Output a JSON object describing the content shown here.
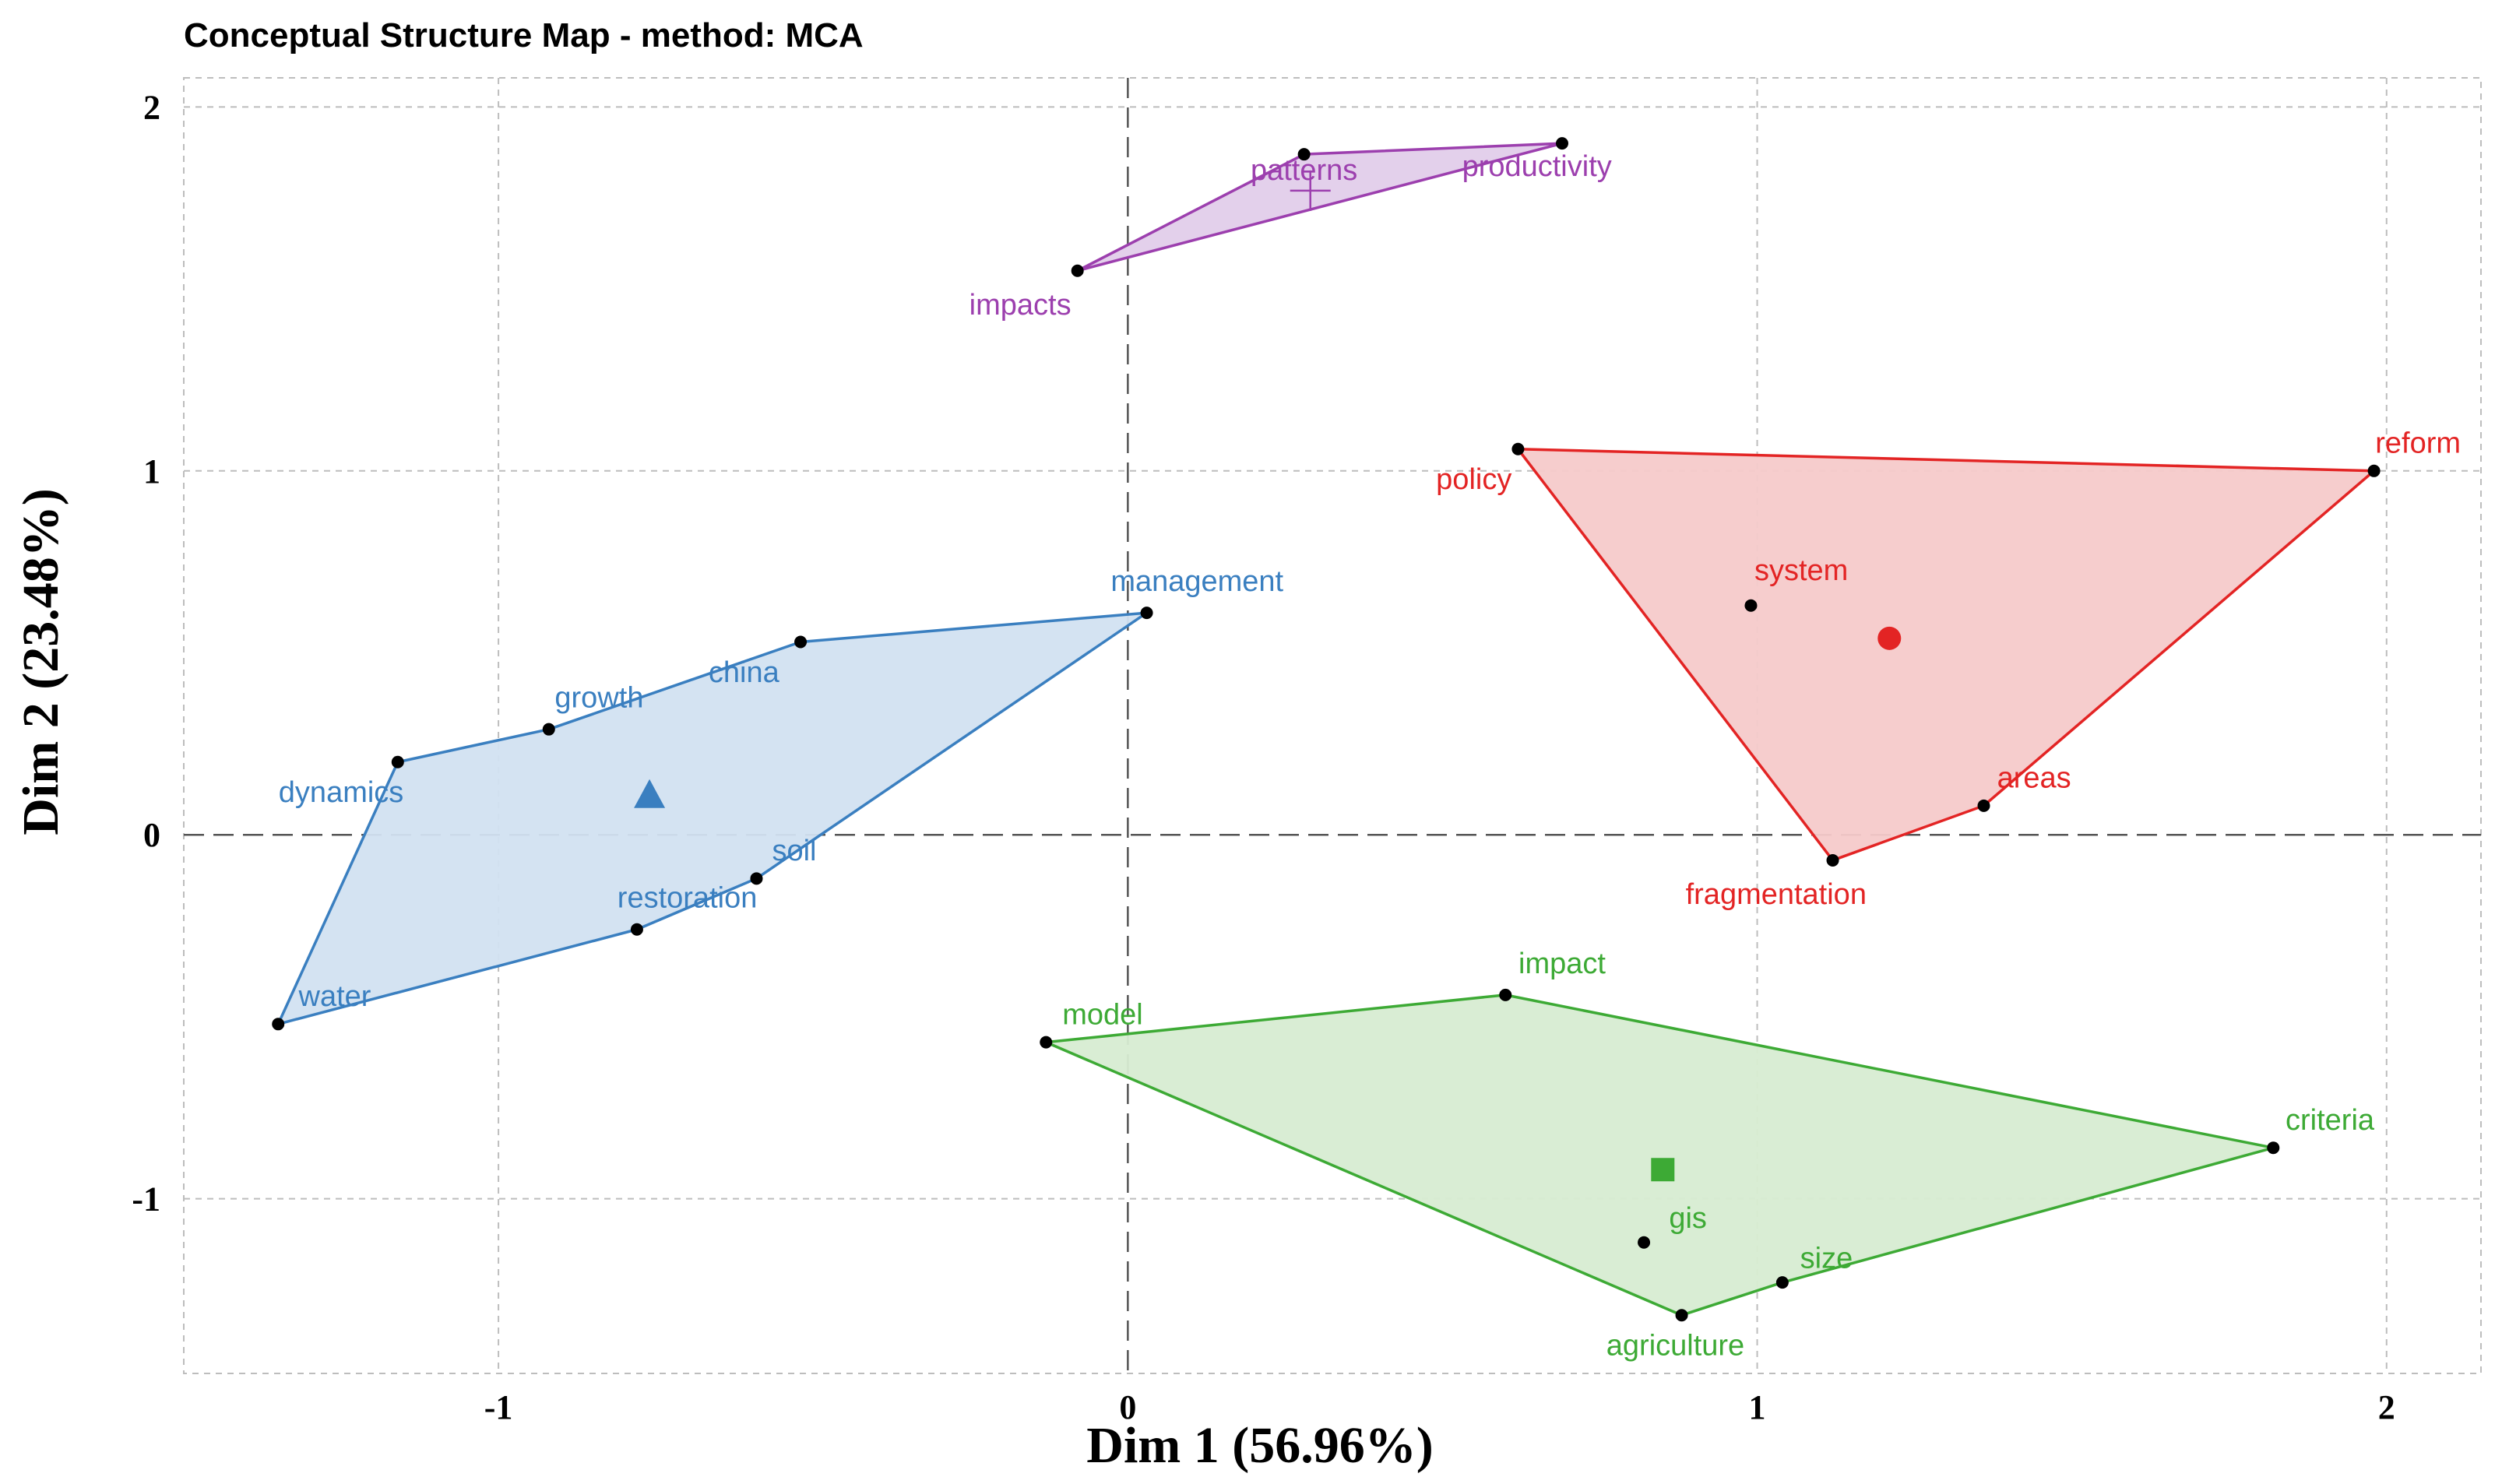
{
  "chart_data": {
    "type": "scatter",
    "title": "Conceptual Structure Map - method: MCA",
    "xlabel": "Dim 1 (56.96%)",
    "ylabel": "Dim 2 (23.48%)",
    "xlim": [
      -1.5,
      2.15
    ],
    "ylim": [
      -1.48,
      2.08
    ],
    "xticks": [
      -1,
      0,
      1,
      2
    ],
    "yticks": [
      -1,
      0,
      1,
      2
    ],
    "grid": true,
    "clusters": [
      {
        "name": "cluster-purple",
        "color": "#9c3fae",
        "fill": "#e2cdea",
        "centroid": {
          "x": 0.29,
          "y": 1.77,
          "marker": "plus"
        },
        "points": [
          {
            "label": "patterns",
            "x": 0.28,
            "y": 1.87,
            "anchor": "middle",
            "dx": 0,
            "dy": -0.07
          },
          {
            "label": "productivity",
            "x": 0.69,
            "y": 1.9,
            "anchor": "middle",
            "dx": -0.04,
            "dy": -0.09
          },
          {
            "label": "impacts",
            "x": -0.08,
            "y": 1.55,
            "anchor": "end",
            "dx": -0.01,
            "dy": -0.12
          }
        ],
        "hull": [
          "impacts",
          "patterns",
          "productivity"
        ]
      },
      {
        "name": "cluster-red",
        "color": "#e32424",
        "fill": "#f6caca",
        "centroid": {
          "x": 1.21,
          "y": 0.54,
          "marker": "circle"
        },
        "points": [
          {
            "label": "policy",
            "x": 0.62,
            "y": 1.06,
            "anchor": "end",
            "dx": -0.01,
            "dy": -0.11
          },
          {
            "label": "reform",
            "x": 1.98,
            "y": 1.0,
            "anchor": "middle",
            "dx": 0.07,
            "dy": 0.05
          },
          {
            "label": "system",
            "x": 0.99,
            "y": 0.63,
            "anchor": "middle",
            "dx": 0.08,
            "dy": 0.07
          },
          {
            "label": "areas",
            "x": 1.36,
            "y": 0.08,
            "anchor": "middle",
            "dx": 0.08,
            "dy": 0.05
          },
          {
            "label": "fragmentation",
            "x": 1.12,
            "y": -0.07,
            "anchor": "middle",
            "dx": -0.09,
            "dy": -0.12
          }
        ],
        "hull": [
          "policy",
          "reform",
          "areas",
          "fragmentation"
        ]
      },
      {
        "name": "cluster-blue",
        "color": "#3a7fc0",
        "fill": "#d2e2f1",
        "centroid": {
          "x": -0.76,
          "y": 0.11,
          "marker": "triangle"
        },
        "points": [
          {
            "label": "management",
            "x": 0.03,
            "y": 0.61,
            "anchor": "middle",
            "dx": 0.08,
            "dy": 0.06
          },
          {
            "label": "china",
            "x": -0.52,
            "y": 0.53,
            "anchor": "middle",
            "dx": -0.09,
            "dy": -0.11
          },
          {
            "label": "growth",
            "x": -0.92,
            "y": 0.29,
            "anchor": "middle",
            "dx": 0.08,
            "dy": 0.06
          },
          {
            "label": "dynamics",
            "x": -1.16,
            "y": 0.2,
            "anchor": "middle",
            "dx": -0.09,
            "dy": -0.11
          },
          {
            "label": "soil",
            "x": -0.59,
            "y": -0.12,
            "anchor": "middle",
            "dx": 0.06,
            "dy": 0.05
          },
          {
            "label": "restoration",
            "x": -0.78,
            "y": -0.26,
            "anchor": "middle",
            "dx": 0.08,
            "dy": 0.06
          },
          {
            "label": "water",
            "x": -1.35,
            "y": -0.52,
            "anchor": "middle",
            "dx": 0.09,
            "dy": 0.05
          }
        ],
        "hull": [
          "water",
          "dynamics",
          "growth",
          "china",
          "management",
          "soil",
          "restoration"
        ]
      },
      {
        "name": "cluster-green",
        "color": "#3daa35",
        "fill": "#d7ecd2",
        "centroid": {
          "x": 0.85,
          "y": -0.92,
          "marker": "square"
        },
        "points": [
          {
            "label": "impact",
            "x": 0.6,
            "y": -0.44,
            "anchor": "middle",
            "dx": 0.09,
            "dy": 0.06
          },
          {
            "label": "model",
            "x": -0.13,
            "y": -0.57,
            "anchor": "middle",
            "dx": 0.09,
            "dy": 0.05
          },
          {
            "label": "criteria",
            "x": 1.82,
            "y": -0.86,
            "anchor": "middle",
            "dx": 0.09,
            "dy": 0.05
          },
          {
            "label": "gis",
            "x": 0.82,
            "y": -1.12,
            "anchor": "middle",
            "dx": 0.07,
            "dy": 0.04
          },
          {
            "label": "size",
            "x": 1.04,
            "y": -1.23,
            "anchor": "middle",
            "dx": 0.07,
            "dy": 0.04
          },
          {
            "label": "agriculture",
            "x": 0.88,
            "y": -1.32,
            "anchor": "middle",
            "dx": -0.01,
            "dy": -0.11
          }
        ],
        "hull": [
          "model",
          "impact",
          "criteria",
          "size",
          "agriculture"
        ]
      }
    ]
  }
}
